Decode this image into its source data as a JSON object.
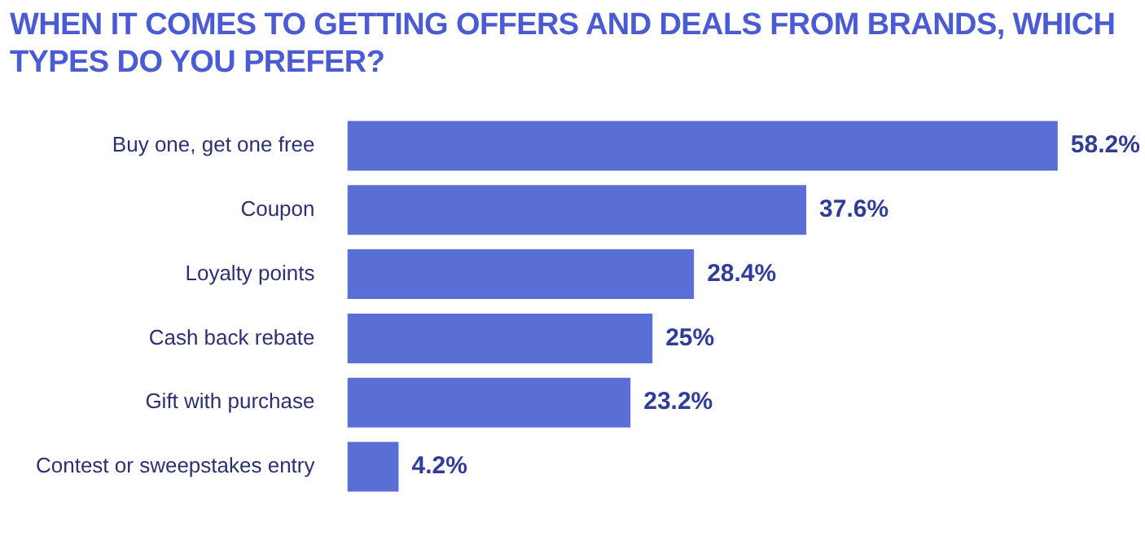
{
  "chart_data": {
    "type": "bar",
    "orientation": "horizontal",
    "title": "WHEN IT COMES TO GETTING OFFERS AND DEALS FROM BRANDS, WHICH TYPES DO YOU PREFER?",
    "categories": [
      "Buy one, get one free",
      "Coupon",
      "Loyalty points",
      "Cash back rebate",
      "Gift with purchase",
      "Contest or sweepstakes entry"
    ],
    "values": [
      58.2,
      37.6,
      28.4,
      25,
      23.2,
      4.2
    ],
    "value_labels": [
      "58.2%",
      "37.6%",
      "28.4%",
      "25%",
      "23.2%",
      "4.2%"
    ],
    "color": "#5a6fd6"
  }
}
